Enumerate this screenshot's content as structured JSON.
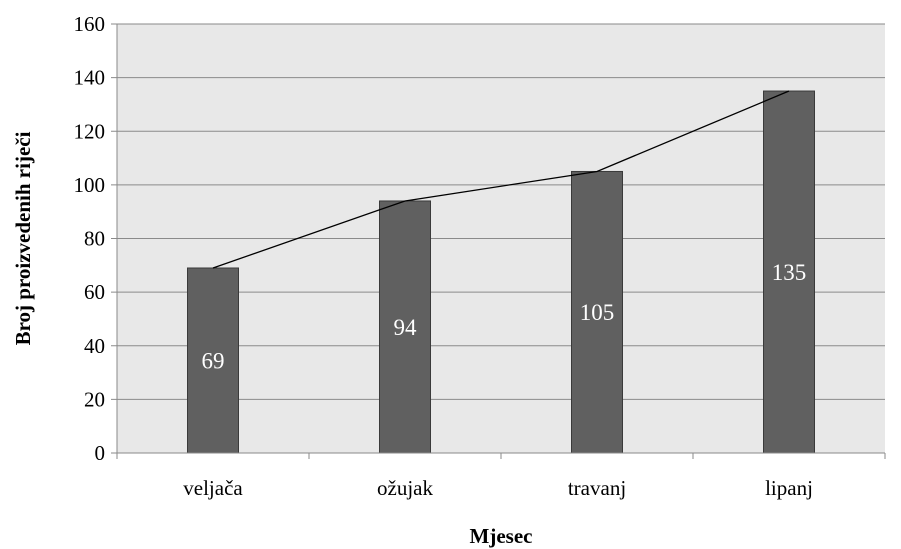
{
  "chart_data": {
    "type": "bar",
    "categories": [
      "veljača",
      "ožujak",
      "travanj",
      "lipanj"
    ],
    "values": [
      69,
      94,
      105,
      135
    ],
    "data_labels": [
      "69",
      "94",
      "105",
      "135"
    ],
    "trend_line": true,
    "title": "",
    "xlabel": "Mjesec",
    "ylabel": "Broj proizvedenih riječi",
    "ylim": [
      0,
      160
    ],
    "yticks": [
      0,
      20,
      40,
      60,
      80,
      100,
      120,
      140,
      160
    ],
    "grid": true,
    "legend": "none",
    "colors": {
      "bar": "#606060",
      "plot_background": "#e8e8e8",
      "gridline": "#8a8a8a",
      "trend_line": "#000000",
      "data_label": "#ffffff"
    }
  }
}
